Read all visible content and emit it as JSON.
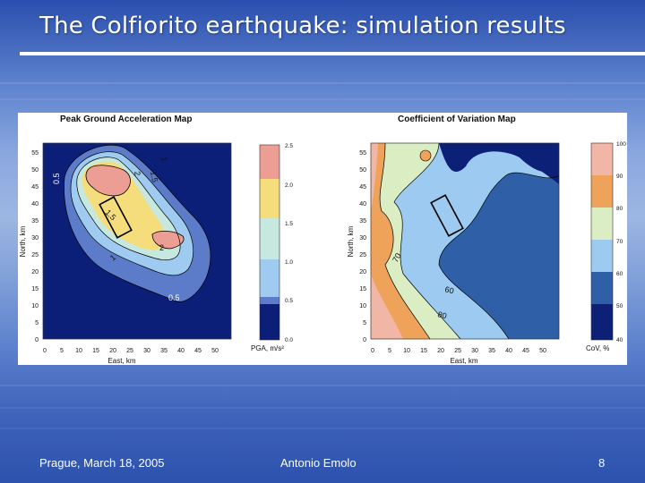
{
  "slide": {
    "title": "The Colfiorito earthquake: simulation results",
    "footer_left": "Prague, March 18, 2005",
    "footer_center": "Antonio Emolo",
    "page_number": "8"
  },
  "figure": {
    "left_map": {
      "title": "Peak Ground Acceleration Map",
      "xlabel": "East, km",
      "ylabel": "North, km",
      "x_ticks": [
        "0",
        "5",
        "10",
        "15",
        "20",
        "25",
        "30",
        "35",
        "40",
        "45",
        "50"
      ],
      "y_ticks": [
        "0",
        "5",
        "10",
        "15",
        "20",
        "25",
        "30",
        "35",
        "40",
        "45",
        "50",
        "55"
      ],
      "contour_labels": [
        "0.5",
        "2",
        "1.5",
        "1",
        "1.5",
        "2",
        "1",
        "0.5"
      ],
      "colorbar": {
        "label": "PGA, m/s²",
        "ticks": [
          "2.5",
          "2.0",
          "1.5",
          "1.0",
          "0.5",
          "0.0"
        ],
        "colors": [
          "#ed9e94",
          "#f5dd7b",
          "#c7e8df",
          "#9ecbef",
          "#5c7cc9",
          "#0c1f78"
        ]
      }
    },
    "right_map": {
      "title": "Coefficient of Variation Map",
      "xlabel": "East, km",
      "ylabel": "North, km",
      "x_ticks": [
        "0",
        "5",
        "10",
        "15",
        "20",
        "25",
        "30",
        "35",
        "40",
        "45",
        "50"
      ],
      "y_ticks": [
        "0",
        "5",
        "10",
        "15",
        "20",
        "25",
        "30",
        "35",
        "40",
        "45",
        "50",
        "55"
      ],
      "contour_labels": [
        "70",
        "60",
        "80"
      ],
      "colorbar": {
        "label": "CoV, %",
        "ticks": [
          "100",
          "90",
          "80",
          "70",
          "60",
          "50",
          "40"
        ],
        "colors": [
          "#f2b6a6",
          "#efa25a",
          "#dbeec3",
          "#9ccaf0",
          "#2f5fa6",
          "#0c2077"
        ]
      }
    }
  }
}
